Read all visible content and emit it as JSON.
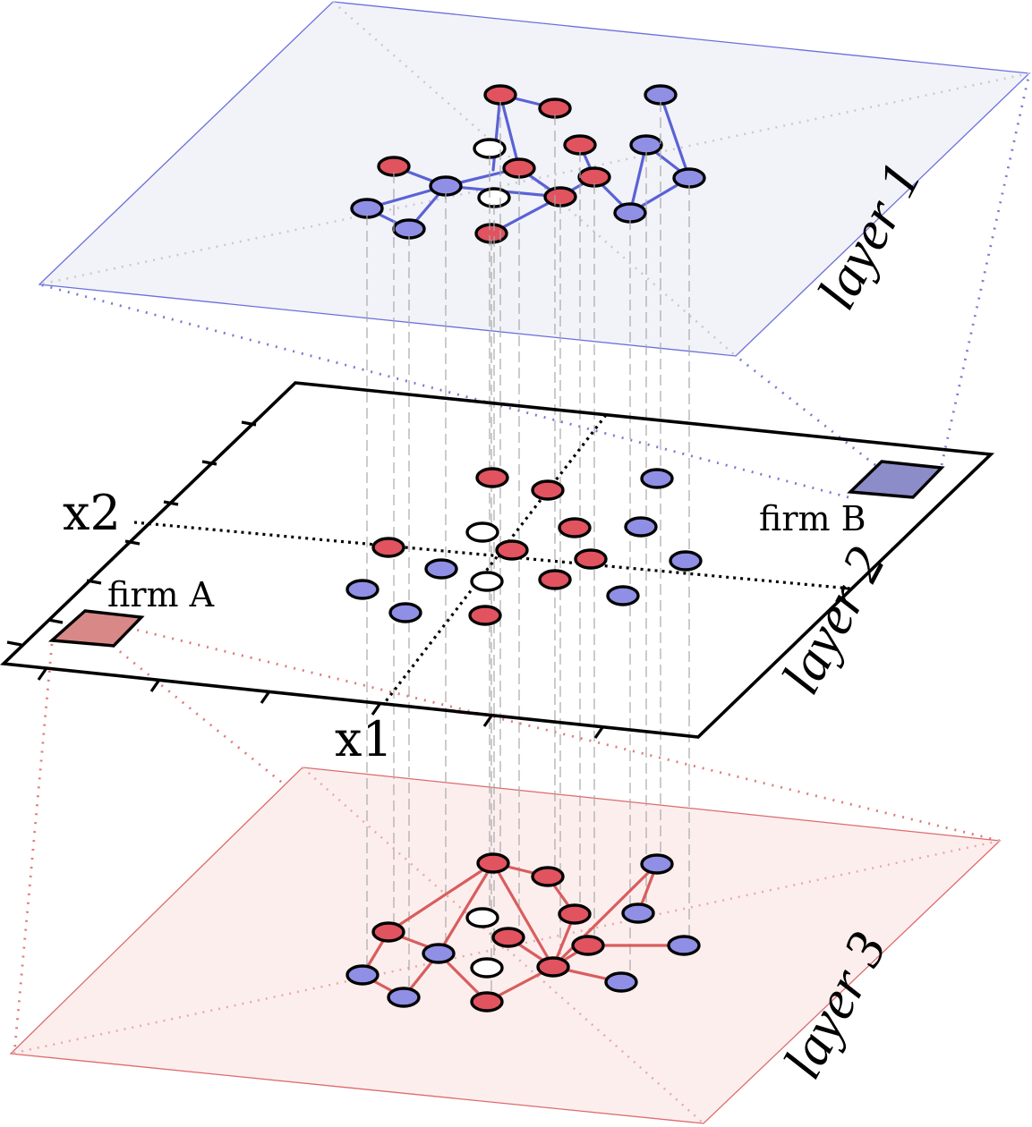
{
  "diagram": {
    "labels": {
      "layer1": "layer 1",
      "layer2": "layer 2",
      "layer3": "layer 3",
      "axis_x1": "x1",
      "axis_x2": "x2",
      "firm_a": "firm A",
      "firm_b": "firm B"
    },
    "colors": {
      "red_node": "#e0535f",
      "blue_node": "#8f8fe6",
      "white_node": "#ffffff",
      "layer1_plane": "#f2f3f8",
      "layer1_edge": "#5a62d6",
      "layer3_plane": "#fdeeee",
      "layer3_edge": "#d95d5d",
      "firm_a_fill": "#d98888",
      "firm_b_fill": "#8c8cc8"
    }
  }
}
